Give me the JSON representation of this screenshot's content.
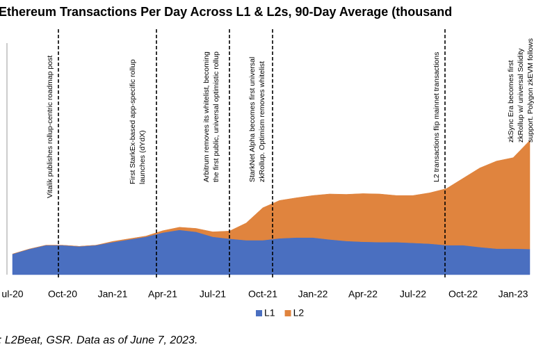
{
  "chart_data": {
    "type": "stacked-area",
    "title": "Ethereum Transactions Per Day Across L1 & L2s, 90-Day Average (thousand",
    "categories": [
      "ul-20",
      null,
      null,
      "Oct-20",
      null,
      null,
      "Jan-21",
      null,
      null,
      "Apr-21",
      null,
      null,
      "Jul-21",
      null,
      null,
      "Oct-21",
      null,
      null,
      "Jan-22",
      null,
      null,
      "Apr-22",
      null,
      null,
      "Jul-22",
      null,
      null,
      "Oct-22",
      null,
      null,
      "Jan-23",
      null
    ],
    "series": [
      {
        "name": "L1",
        "color": "#4a6fc0",
        "values": [
          540,
          670,
          770,
          770,
          740,
          770,
          850,
          920,
          990,
          1100,
          1170,
          1120,
          990,
          940,
          900,
          900,
          950,
          970,
          970,
          920,
          880,
          860,
          850,
          850,
          830,
          810,
          770,
          770,
          720,
          680,
          680,
          670
        ]
      },
      {
        "name": "L2",
        "color": "#e0843e",
        "values": [
          0,
          0,
          0,
          0,
          0,
          0,
          20,
          20,
          20,
          50,
          70,
          90,
          130,
          200,
          450,
          850,
          990,
          1040,
          1100,
          1190,
          1220,
          1260,
          1260,
          1220,
          1240,
          1330,
          1480,
          1750,
          2070,
          2290,
          2380,
          2840
        ]
      }
    ],
    "ylim": [
      0,
      6000
    ],
    "annotations": [
      [
        "Vitalik publishes rollup-centric roadmap post"
      ],
      [
        "First StarkEx-based app-specific rollup",
        "launches (dYdX)"
      ],
      [
        "Arbitrum removes its whitelist, becoming",
        "the first public, universal optimistic rollup"
      ],
      [
        "StarkNet Alpha becomes first universal",
        "zkRollup. Optimism removes whitelist"
      ],
      [
        "L2 transactions flip mainnet transactions"
      ],
      [
        "zkSync Era becomes first",
        "zkRollup w/ universal Solidity",
        "support. Polygon zkEVM follows"
      ]
    ],
    "source": ": L2Beat, GSR. Data as of June 7, 2023."
  }
}
